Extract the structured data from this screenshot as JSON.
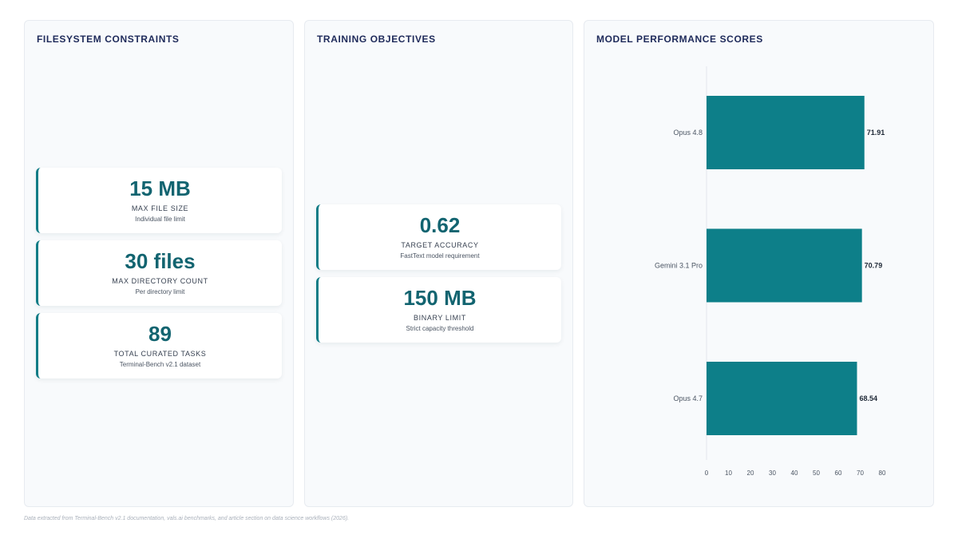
{
  "filesystem": {
    "title": "FILESYSTEM CONSTRAINTS",
    "cards": [
      {
        "value": "15 MB",
        "label": "MAX FILE SIZE",
        "sub": "Individual file limit"
      },
      {
        "value": "30 files",
        "label": "MAX DIRECTORY COUNT",
        "sub": "Per directory limit"
      },
      {
        "value": "89",
        "label": "TOTAL CURATED TASKS",
        "sub": "Terminal-Bench v2.1 dataset"
      }
    ]
  },
  "training": {
    "title": "TRAINING OBJECTIVES",
    "cards": [
      {
        "value": "0.62",
        "label": "TARGET ACCURACY",
        "sub": "FastText model requirement"
      },
      {
        "value": "150 MB",
        "label": "BINARY LIMIT",
        "sub": "Strict capacity threshold"
      }
    ]
  },
  "performance": {
    "title": "MODEL PERFORMANCE SCORES"
  },
  "chart_data": {
    "type": "bar",
    "orientation": "horizontal",
    "title": "MODEL PERFORMANCE SCORES",
    "categories": [
      "Opus 4.8",
      "Gemini 3.1 Pro",
      "Opus 4.7"
    ],
    "values": [
      71.91,
      70.79,
      68.54
    ],
    "value_labels": [
      "71.91",
      "70.79",
      "68.54"
    ],
    "xlim": [
      0,
      80
    ],
    "xticks": [
      "0",
      "10",
      "20",
      "30",
      "40",
      "50",
      "60",
      "70",
      "80"
    ],
    "grid": false,
    "legend": "none",
    "bar_color": "#0d7f89"
  },
  "colors": {
    "accent": "#0f7c86",
    "title": "#1e2a5a",
    "value": "#126470"
  },
  "footnote": "Data extracted from Terminal-Bench v2.1 documentation, vals.ai benchmarks, and article section on data science workflows (2026)."
}
